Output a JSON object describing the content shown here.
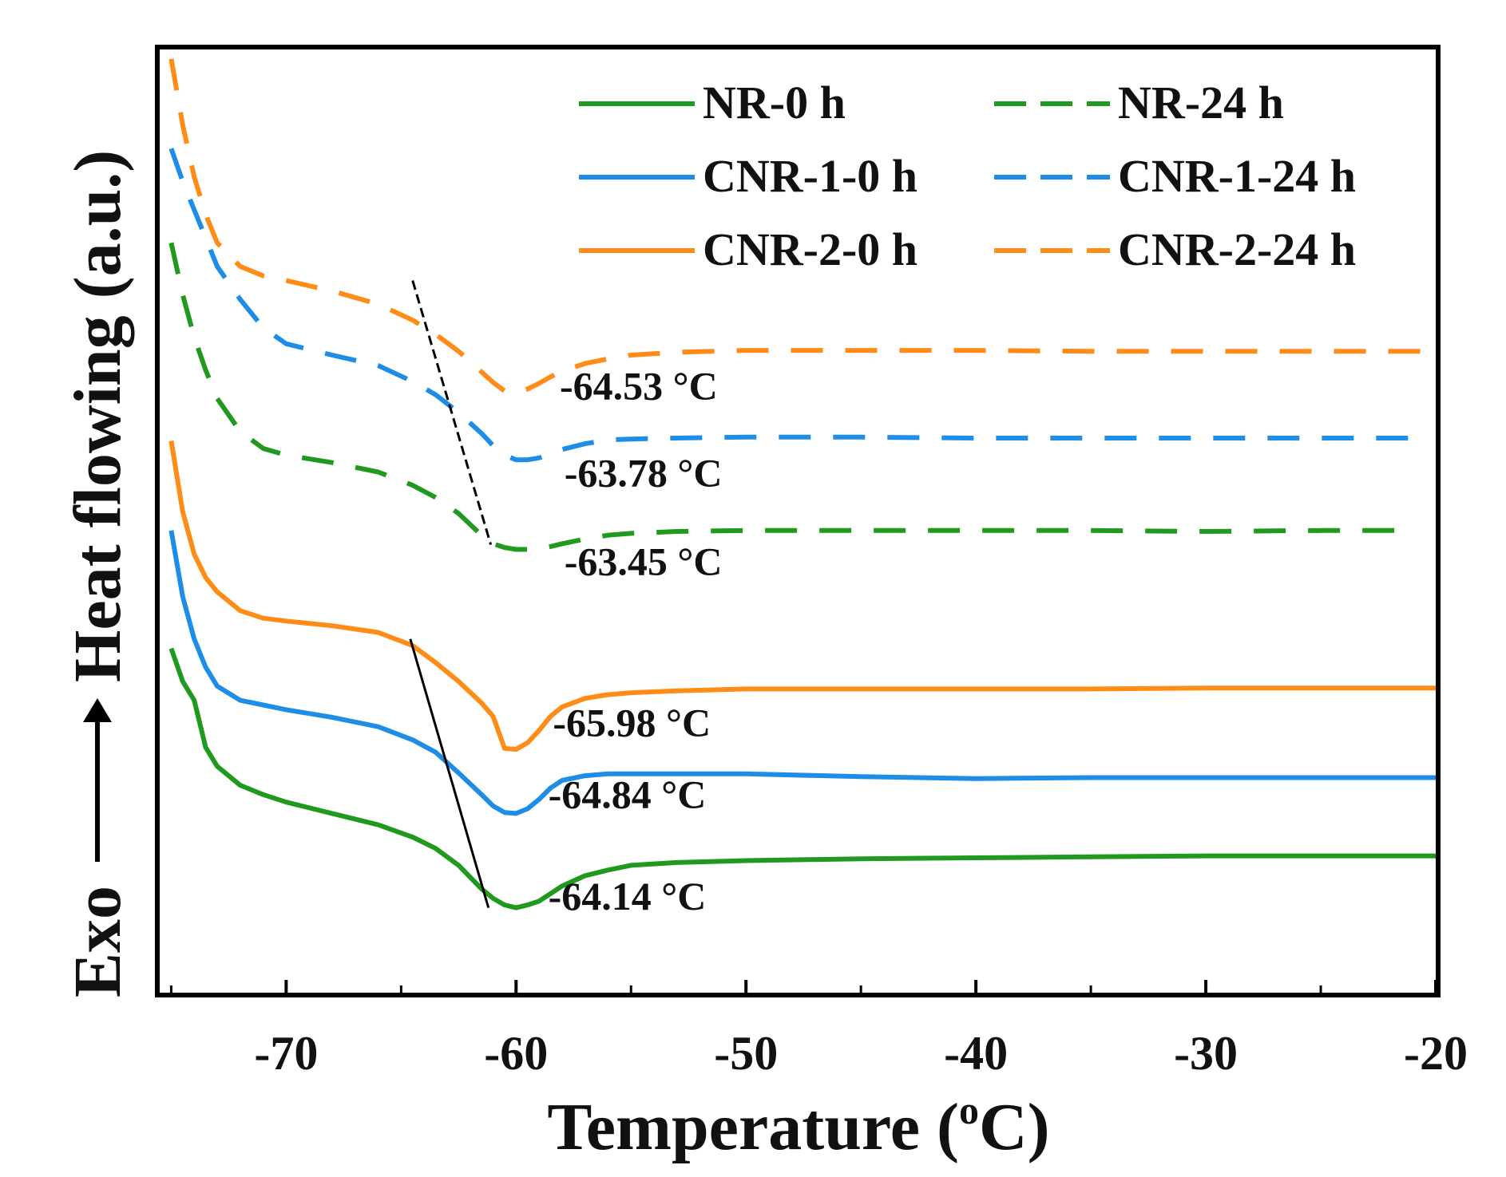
{
  "chart_data": {
    "type": "line",
    "title": "",
    "xlabel": "Temperature (",
    "xlabel_deg": "o",
    "xlabel_unit": "C)",
    "ylabel_exo": "Exo",
    "ylabel_main": "Heat flowing (a.u.)",
    "xlim": [
      -75.5,
      -20
    ],
    "ylim": [
      0,
      100
    ],
    "x_ticks": [
      -70,
      -60,
      -50,
      -40,
      -30,
      -20
    ],
    "x_tick_labels": [
      "-70",
      "-60",
      "-50",
      "-40",
      "-30",
      "-20"
    ],
    "x_minor_ticks": [
      -75,
      -65,
      -55,
      -45,
      -35,
      -25
    ],
    "grid": false,
    "legend_position": "top-right",
    "series": [
      {
        "name": "NR-0 h",
        "color": "#1f9a1f",
        "dash": "solid",
        "x": [
          -75,
          -74.5,
          -74,
          -73.5,
          -73,
          -72,
          -71,
          -70,
          -68,
          -66,
          -64.5,
          -63.5,
          -62.5,
          -61.5,
          -61,
          -60.5,
          -60,
          -59.5,
          -59,
          -58.5,
          -58,
          -57,
          -56,
          -55,
          -53,
          -50,
          -45,
          -40,
          -35,
          -30,
          -25,
          -20
        ],
        "y": [
          36.5,
          33,
          31,
          26,
          24,
          22,
          21,
          20.2,
          19,
          17.8,
          16.5,
          15.3,
          13.5,
          11,
          10,
          9.3,
          9.0,
          9.3,
          9.7,
          10.5,
          11.3,
          12.4,
          13.0,
          13.5,
          13.8,
          14.0,
          14.2,
          14.3,
          14.4,
          14.5,
          14.5,
          14.5
        ]
      },
      {
        "name": "NR-24 h",
        "color": "#1f9a1f",
        "dash": "dashed",
        "x": [
          -75,
          -74.5,
          -74,
          -73.5,
          -73,
          -72,
          -71,
          -70,
          -68,
          -66,
          -64.5,
          -63.5,
          -62.5,
          -61.5,
          -61,
          -60.5,
          -60,
          -59.5,
          -59,
          -58.5,
          -58,
          -57,
          -56,
          -55,
          -53,
          -50,
          -45,
          -40,
          -35,
          -30,
          -25,
          -21
        ],
        "y": [
          79.5,
          74,
          69.5,
          66,
          63,
          59.5,
          57.7,
          57,
          56.2,
          55.2,
          53.8,
          52.5,
          50.8,
          48.5,
          47.6,
          47.2,
          47.0,
          47.0,
          47.1,
          47.3,
          47.6,
          48.1,
          48.5,
          48.7,
          48.9,
          49.0,
          49.0,
          49.0,
          49.0,
          48.9,
          49.0,
          49.0
        ]
      },
      {
        "name": "CNR-1-0 h",
        "color": "#1e8de8",
        "dash": "solid",
        "x": [
          -75,
          -74.5,
          -74,
          -73.5,
          -73,
          -72,
          -71,
          -70,
          -68,
          -66,
          -64.5,
          -63.5,
          -62.5,
          -61.5,
          -61,
          -60.5,
          -60,
          -59.5,
          -59,
          -58.5,
          -58,
          -57,
          -56,
          -55,
          -53,
          -50,
          -45,
          -40,
          -35,
          -30,
          -25,
          -20
        ],
        "y": [
          49,
          42,
          37.5,
          34.5,
          32.5,
          31,
          30.5,
          30,
          29.2,
          28.2,
          26.8,
          25.5,
          23.3,
          21,
          19.8,
          19.1,
          19.0,
          19.5,
          20.5,
          21.7,
          22.5,
          23,
          23.2,
          23.2,
          23.2,
          23.2,
          22.9,
          22.7,
          22.8,
          22.8,
          22.8,
          22.8
        ]
      },
      {
        "name": "CNR-1-24 h",
        "color": "#1e8de8",
        "dash": "dashed",
        "x": [
          -75,
          -74.5,
          -74,
          -73.5,
          -73,
          -72,
          -71,
          -70,
          -68,
          -66,
          -64.5,
          -63.5,
          -62.5,
          -61.5,
          -61,
          -60.5,
          -60,
          -59.5,
          -59,
          -58.5,
          -58,
          -57,
          -56,
          -55,
          -53,
          -50,
          -45,
          -40,
          -35,
          -30,
          -25,
          -21
        ],
        "y": [
          89.5,
          86,
          83,
          80,
          77,
          73.5,
          70.5,
          68.8,
          67.6,
          66.5,
          64.8,
          63.4,
          61.5,
          59.3,
          58,
          57.0,
          56.5,
          56.5,
          56.7,
          57.1,
          57.6,
          58.2,
          58.6,
          58.7,
          58.8,
          58.9,
          58.9,
          58.8,
          58.8,
          58.8,
          58.8,
          58.8
        ]
      },
      {
        "name": "CNR-2-0 h",
        "color": "#ff8c17",
        "dash": "solid",
        "x": [
          -75,
          -74.5,
          -74,
          -73.5,
          -73,
          -72,
          -71,
          -70,
          -68,
          -66,
          -64.5,
          -63.5,
          -62.5,
          -61.5,
          -61,
          -60.5,
          -60,
          -59.5,
          -59,
          -58.5,
          -58,
          -57,
          -56,
          -55,
          -53,
          -50,
          -45,
          -40,
          -35,
          -30,
          -25,
          -20
        ],
        "y": [
          58.5,
          51,
          46.5,
          44,
          42.5,
          40.5,
          39.7,
          39.4,
          38.9,
          38.2,
          36.8,
          35,
          33,
          30.7,
          29.3,
          25.9,
          25.8,
          26.5,
          27.8,
          29.3,
          30.3,
          31.2,
          31.6,
          31.8,
          32.0,
          32.2,
          32.2,
          32.2,
          32.2,
          32.3,
          32.3,
          32.3
        ]
      },
      {
        "name": "CNR-2-24 h",
        "color": "#ff8c17",
        "dash": "dashed",
        "x": [
          -75,
          -74.5,
          -74,
          -73.5,
          -73,
          -72,
          -71,
          -70,
          -68,
          -66,
          -64.5,
          -63.5,
          -62.5,
          -61.5,
          -61,
          -60.5,
          -60,
          -59.5,
          -59,
          -58.5,
          -58,
          -57,
          -56,
          -55,
          -53,
          -50,
          -45,
          -40,
          -35,
          -30,
          -25,
          -20
        ],
        "y": [
          99,
          92,
          86.5,
          82.5,
          79.5,
          77,
          76,
          75.5,
          74.4,
          73.0,
          71.3,
          69.8,
          68.0,
          65.8,
          64.7,
          63.8,
          63.6,
          64.0,
          64.6,
          65.3,
          65.9,
          66.7,
          67.2,
          67.6,
          67.9,
          68.1,
          68.1,
          68.1,
          68.0,
          68.0,
          68.0,
          68.0
        ]
      }
    ],
    "tangent_lines": [
      {
        "style": "dashed",
        "color": "#000000",
        "x": [
          -64.5,
          -61.1
        ],
        "y": [
          75.5,
          47.5
        ]
      },
      {
        "style": "solid",
        "color": "#000000",
        "x": [
          -64.6,
          -61.2
        ],
        "y": [
          37.5,
          9.0
        ]
      }
    ],
    "annotations": [
      {
        "text": "-64.53 °C",
        "x": -58.1,
        "y": 62.9
      },
      {
        "text": "-63.78 °C",
        "x": -57.9,
        "y": 53.7
      },
      {
        "text": "-63.45 °C",
        "x": -57.9,
        "y": 44.3
      },
      {
        "text": "-65.98 °C",
        "x": -58.4,
        "y": 27.2
      },
      {
        "text": "-64.84 °C",
        "x": -58.6,
        "y": 19.6
      },
      {
        "text": "-64.14 °C",
        "x": -58.6,
        "y": 8.8
      }
    ]
  }
}
